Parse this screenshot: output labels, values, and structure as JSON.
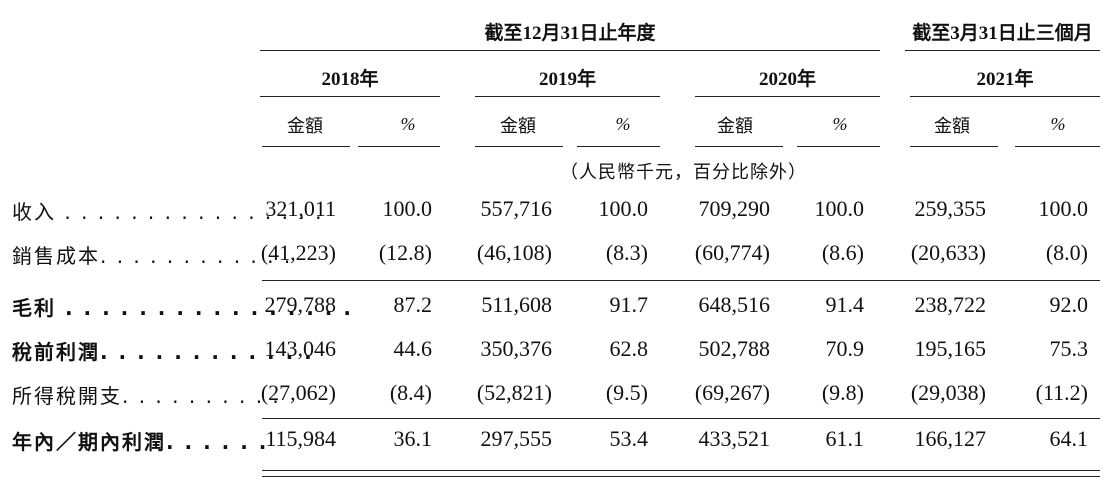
{
  "header": {
    "group1": "截至12月31日止年度",
    "group2": "截至3月31日止三個月",
    "years": [
      "2018年",
      "2019年",
      "2020年",
      "2021年"
    ],
    "col_amount": "金額",
    "col_pct": "%",
    "unit_note": "（人民幣千元，百分比除外）"
  },
  "rows": [
    {
      "label": "收入 . . . . . . . . . . . . . . . .",
      "bold": false,
      "values": [
        "321,011",
        "100.0",
        "557,716",
        "100.0",
        "709,290",
        "100.0",
        "259,355",
        "100.0"
      ]
    },
    {
      "label": "銷售成本. . . . . . . . . . . .",
      "bold": false,
      "values": [
        "(41,223)",
        "(12.8)",
        "(46,108)",
        "(8.3)",
        "(60,774)",
        "(8.6)",
        "(20,633)",
        "(8.0)"
      ]
    },
    {
      "label": "毛利 . . . . . . . . . . . . . . . .",
      "bold": true,
      "values": [
        "279,788",
        "87.2",
        "511,608",
        "91.7",
        "648,516",
        "91.4",
        "238,722",
        "92.0"
      ]
    },
    {
      "label": "稅前利潤. . . . . . . . . . . .",
      "bold": true,
      "values": [
        "143,046",
        "44.6",
        "350,376",
        "62.8",
        "502,788",
        "70.9",
        "195,165",
        "75.3"
      ]
    },
    {
      "label": "所得稅開支. . . . . . . . . .",
      "bold": false,
      "values": [
        "(27,062)",
        "(8.4)",
        "(52,821)",
        "(9.5)",
        "(69,267)",
        "(9.8)",
        "(29,038)",
        "(11.2)"
      ]
    },
    {
      "label": "年內／期內利潤. . . . . .",
      "bold": true,
      "values": [
        "115,984",
        "36.1",
        "297,555",
        "53.4",
        "433,521",
        "61.1",
        "166,127",
        "64.1"
      ]
    }
  ]
}
